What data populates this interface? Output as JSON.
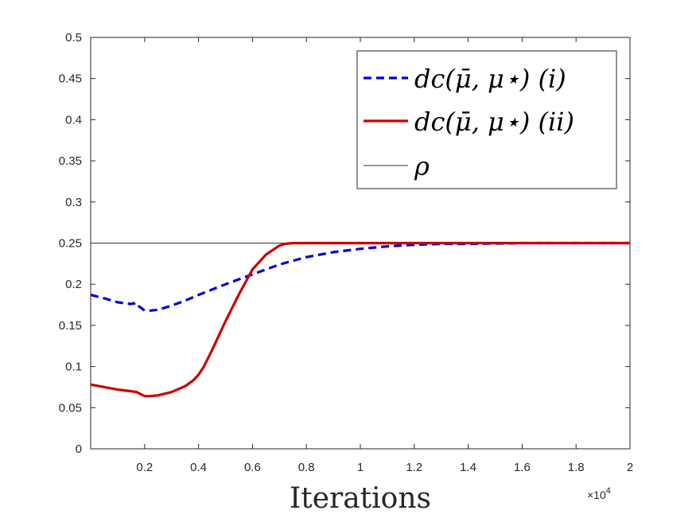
{
  "chart_data": {
    "type": "line",
    "title": "",
    "xlabel": "Iterations",
    "ylabel": "",
    "x_multiplier_label": "×10",
    "x_multiplier_exponent": "4",
    "xlim": [
      0,
      2
    ],
    "ylim": [
      0,
      0.5
    ],
    "xticks": [
      0.2,
      0.4,
      0.6,
      0.8,
      1,
      1.2,
      1.4,
      1.6,
      1.8,
      2
    ],
    "xtick_labels": [
      "0.2",
      "0.4",
      "0.6",
      "0.8",
      "1",
      "1.2",
      "1.4",
      "1.6",
      "1.8",
      "2"
    ],
    "yticks": [
      0,
      0.05,
      0.1,
      0.15,
      0.2,
      0.25,
      0.3,
      0.35,
      0.4,
      0.45,
      0.5
    ],
    "ytick_labels": [
      "0",
      "0.05",
      "0.1",
      "0.15",
      "0.2",
      "0.25",
      "0.3",
      "0.35",
      "0.4",
      "0.45",
      "0.5"
    ],
    "grid": false,
    "legend_position": "top-right",
    "series": [
      {
        "name": "d_c(μ̄, μ*) (i)",
        "legend_label": "dc(μ̄, μ⋆) (i)",
        "color": "#0000dd",
        "style": "dashed",
        "x": [
          0,
          0.05,
          0.1,
          0.15,
          0.16,
          0.17,
          0.18,
          0.2,
          0.22,
          0.25,
          0.3,
          0.35,
          0.4,
          0.5,
          0.6,
          0.7,
          0.8,
          0.9,
          1.0,
          1.1,
          1.2,
          1.3,
          1.4,
          1.6,
          1.8,
          2.0
        ],
        "y": [
          0.187,
          0.183,
          0.178,
          0.176,
          0.177,
          0.172,
          0.173,
          0.168,
          0.168,
          0.169,
          0.174,
          0.18,
          0.187,
          0.2,
          0.212,
          0.224,
          0.233,
          0.239,
          0.243,
          0.246,
          0.248,
          0.249,
          0.249,
          0.25,
          0.25,
          0.25
        ]
      },
      {
        "name": "d_c(μ̄, μ*) (ii)",
        "legend_label": "dc(μ̄, μ⋆) (ii)",
        "color": "#cc0000",
        "style": "solid",
        "x": [
          0,
          0.05,
          0.1,
          0.15,
          0.17,
          0.2,
          0.22,
          0.25,
          0.3,
          0.35,
          0.38,
          0.4,
          0.42,
          0.45,
          0.5,
          0.55,
          0.6,
          0.65,
          0.7,
          0.72,
          0.75,
          0.8,
          0.9,
          1.0,
          1.2,
          1.5,
          2.0
        ],
        "y": [
          0.078,
          0.075,
          0.072,
          0.07,
          0.069,
          0.064,
          0.064,
          0.065,
          0.069,
          0.076,
          0.083,
          0.09,
          0.1,
          0.12,
          0.155,
          0.188,
          0.218,
          0.236,
          0.247,
          0.249,
          0.25,
          0.25,
          0.25,
          0.25,
          0.25,
          0.25,
          0.25
        ]
      }
    ],
    "reference_lines": [
      {
        "name": "ρ",
        "legend_label": "ρ",
        "y": 0.25,
        "color": "#333333",
        "style": "solid"
      }
    ]
  }
}
